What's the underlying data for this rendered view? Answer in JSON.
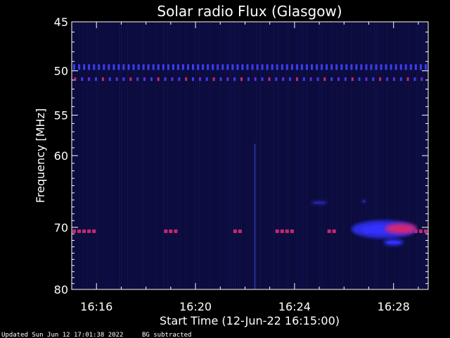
{
  "chart_data": {
    "type": "heatmap",
    "title": "Solar radio Flux (Glasgow)",
    "xlabel": "Start Time (12-Jun-22 16:15:00)",
    "ylabel": "Frequency [MHz]",
    "x_unit": "minutes after 16:15",
    "xlim": [
      0,
      14.4
    ],
    "x_ticks": [
      {
        "value": 1,
        "label": "16:16"
      },
      {
        "value": 5,
        "label": "16:20"
      },
      {
        "value": 9,
        "label": "16:24"
      },
      {
        "value": 13,
        "label": "16:28"
      }
    ],
    "ylim": [
      45,
      80
    ],
    "y_scale": "log",
    "y_ticks": [
      45,
      50,
      55,
      60,
      70,
      80
    ],
    "background_color": "#0a0a3a",
    "intensity_colors": [
      "#0a0a3a",
      "#2828d8",
      "#c8286e"
    ],
    "features": [
      {
        "kind": "dotted_band",
        "freq_mhz": 49.6,
        "t_start": 0,
        "t_end": 14.4,
        "spacing_min": 0.2,
        "intensity": "low",
        "color": "#3c3cf0"
      },
      {
        "kind": "dotted_band",
        "freq_mhz": 50.9,
        "t_start": 0,
        "t_end": 14.4,
        "spacing_min": 0.28,
        "intensity": "mixed",
        "color": "#6a2ad8"
      },
      {
        "kind": "dotted_band",
        "freq_mhz": 70.6,
        "t_start": 0,
        "t_end": 1.0,
        "intensity": "high",
        "color": "#c8286e"
      },
      {
        "kind": "dotted_band",
        "freq_mhz": 70.6,
        "t_start": 3.7,
        "t_end": 4.4,
        "intensity": "high",
        "color": "#c8286e"
      },
      {
        "kind": "dotted_band",
        "freq_mhz": 70.6,
        "t_start": 6.5,
        "t_end": 6.9,
        "intensity": "high",
        "color": "#c8286e"
      },
      {
        "kind": "dotted_band",
        "freq_mhz": 70.6,
        "t_start": 8.2,
        "t_end": 8.9,
        "intensity": "high",
        "color": "#c8286e"
      },
      {
        "kind": "dotted_band",
        "freq_mhz": 70.6,
        "t_start": 10.3,
        "t_end": 10.7,
        "intensity": "high",
        "color": "#c8286e"
      },
      {
        "kind": "dotted_band",
        "freq_mhz": 70.6,
        "t_start": 11.8,
        "t_end": 14.4,
        "intensity": "high",
        "color": "#c8286e"
      },
      {
        "kind": "burst",
        "freq_mhz": 70.3,
        "t_center": 12.6,
        "t_width": 2.6,
        "freq_spread": 2.5,
        "color": "#3232ff"
      },
      {
        "kind": "burst",
        "freq_mhz": 70.2,
        "t_center": 13.3,
        "t_width": 1.3,
        "freq_spread": 1.5,
        "color": "#d02878"
      },
      {
        "kind": "burst",
        "freq_mhz": 72.3,
        "t_center": 13.0,
        "t_width": 0.8,
        "freq_spread": 0.8,
        "color": "#3232ff"
      },
      {
        "kind": "burst",
        "freq_mhz": 66.4,
        "t_center": 10.0,
        "t_width": 0.7,
        "freq_spread": 0.3,
        "color": "#2828b4"
      },
      {
        "kind": "burst",
        "freq_mhz": 66.2,
        "t_center": 11.8,
        "t_width": 0.15,
        "freq_spread": 0.4,
        "color": "#2828b4"
      },
      {
        "kind": "vertical_streak",
        "t": 7.4,
        "freq_start": 58.5,
        "freq_end": 80,
        "color": "#2832a0"
      }
    ]
  },
  "footer": {
    "updated": "Updated Sun Jun 12 17:01:38 2022",
    "note": "BG subtracted"
  }
}
